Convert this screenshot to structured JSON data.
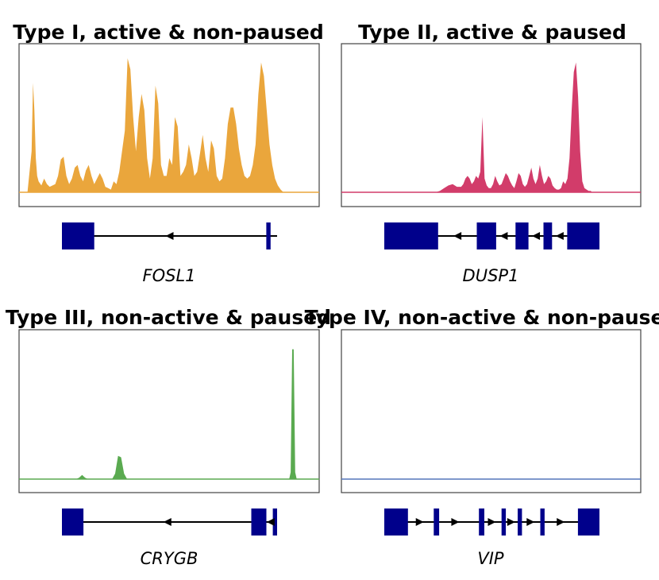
{
  "colors": {
    "frame": "#444444",
    "baseline": "#777777",
    "exon": "#00008b",
    "intron": "#000000"
  },
  "chart_data": [
    {
      "type": "area",
      "title": "Type I, active & non-paused",
      "gene": "FOSL1",
      "color": "#eaa63c",
      "x": [
        0,
        0.015,
        0.02,
        0.025,
        0.03,
        0.035,
        0.04,
        0.05,
        0.06,
        0.07,
        0.08,
        0.1,
        0.11,
        0.12,
        0.13,
        0.14,
        0.15,
        0.16,
        0.17,
        0.18,
        0.19,
        0.2,
        0.21,
        0.22,
        0.23,
        0.24,
        0.25,
        0.26,
        0.27,
        0.28,
        0.29,
        0.3,
        0.31,
        0.32,
        0.33,
        0.34,
        0.35,
        0.36,
        0.37,
        0.38,
        0.39,
        0.4,
        0.41,
        0.42,
        0.43,
        0.44,
        0.45,
        0.46,
        0.47,
        0.48,
        0.49,
        0.5,
        0.51,
        0.52,
        0.53,
        0.54,
        0.55,
        0.56,
        0.57,
        0.58,
        0.59,
        0.6,
        0.61,
        0.62,
        0.63,
        0.64,
        0.65,
        0.66,
        0.67,
        0.68,
        0.69,
        0.7,
        0.71,
        0.72,
        0.73,
        0.74,
        0.75,
        0.76,
        0.77,
        0.78,
        0.79,
        0.8,
        0.81,
        0.82,
        0.83,
        0.84,
        0.85,
        0.86,
        0.87,
        0.88,
        0.89,
        0.9,
        0.91,
        0.92,
        1
      ],
      "y": [
        0,
        0.3,
        0.8,
        0.6,
        0.25,
        0.12,
        0.08,
        0.05,
        0.1,
        0.06,
        0.04,
        0.06,
        0.12,
        0.24,
        0.26,
        0.12,
        0.06,
        0.1,
        0.18,
        0.2,
        0.12,
        0.08,
        0.16,
        0.2,
        0.12,
        0.06,
        0.1,
        0.14,
        0.1,
        0.04,
        0.03,
        0.02,
        0.08,
        0.06,
        0.15,
        0.3,
        0.45,
        0.98,
        0.9,
        0.55,
        0.3,
        0.55,
        0.72,
        0.6,
        0.25,
        0.1,
        0.25,
        0.78,
        0.65,
        0.2,
        0.12,
        0.12,
        0.25,
        0.2,
        0.55,
        0.48,
        0.12,
        0.15,
        0.2,
        0.35,
        0.25,
        0.12,
        0.15,
        0.28,
        0.42,
        0.25,
        0.15,
        0.38,
        0.32,
        0.12,
        0.08,
        0.1,
        0.25,
        0.5,
        0.62,
        0.62,
        0.5,
        0.32,
        0.2,
        0.12,
        0.1,
        0.12,
        0.2,
        0.35,
        0.72,
        0.95,
        0.85,
        0.6,
        0.35,
        0.2,
        0.1,
        0.05,
        0.02,
        0,
        0
      ],
      "signal_range": [
        0.028,
        0.955
      ],
      "exons": [
        [
          0,
          0.15
        ],
        [
          0.95,
          0.97
        ]
      ],
      "strand": "minus",
      "arrow_positions": [
        0.5
      ]
    },
    {
      "type": "area",
      "title": "Type II, active & paused",
      "gene": "DUSP1",
      "color": "#d23c6a",
      "x": [
        0,
        0.19,
        0.21,
        0.23,
        0.25,
        0.27,
        0.29,
        0.31,
        0.32,
        0.33,
        0.34,
        0.35,
        0.36,
        0.37,
        0.38,
        0.39,
        0.4,
        0.41,
        0.42,
        0.43,
        0.44,
        0.45,
        0.46,
        0.47,
        0.48,
        0.49,
        0.5,
        0.51,
        0.52,
        0.53,
        0.54,
        0.55,
        0.56,
        0.57,
        0.58,
        0.59,
        0.6,
        0.61,
        0.62,
        0.63,
        0.64,
        0.65,
        0.66,
        0.67,
        0.68,
        0.69,
        0.7,
        0.71,
        0.72,
        0.73,
        0.74,
        0.75,
        0.76,
        0.77,
        0.78,
        0.79,
        0.8,
        0.81,
        0.82,
        0.83,
        0.84,
        0.85,
        0.86,
        0.87,
        0.88,
        0.89,
        0.9,
        0.91,
        0.915,
        0.92,
        0.925,
        0.93,
        0.935,
        0.95,
        1
      ],
      "y": [
        0,
        0,
        0.01,
        0.03,
        0.05,
        0.06,
        0.04,
        0.04,
        0.06,
        0.1,
        0.12,
        0.1,
        0.06,
        0.08,
        0.12,
        0.1,
        0.15,
        0.55,
        0.1,
        0.05,
        0.03,
        0.03,
        0.06,
        0.12,
        0.08,
        0.05,
        0.06,
        0.1,
        0.14,
        0.12,
        0.08,
        0.05,
        0.03,
        0.08,
        0.14,
        0.12,
        0.06,
        0.04,
        0.06,
        0.12,
        0.18,
        0.1,
        0.06,
        0.1,
        0.2,
        0.12,
        0.06,
        0.08,
        0.12,
        0.1,
        0.05,
        0.03,
        0.02,
        0.02,
        0.03,
        0.08,
        0.06,
        0.1,
        0.25,
        0.6,
        0.88,
        0.95,
        0.7,
        0.3,
        0.08,
        0.03,
        0.02,
        0.01,
        0.01,
        0.01,
        0,
        0,
        0,
        0,
        0
      ],
      "signal_range": [
        0.18,
        0.89
      ],
      "exons": [
        [
          0,
          0.25
        ],
        [
          0.43,
          0.52
        ],
        [
          0.61,
          0.67
        ],
        [
          0.74,
          0.78
        ],
        [
          0.85,
          1.0
        ]
      ],
      "strand": "minus",
      "arrow_positions": [
        0.34,
        0.555,
        0.705,
        0.815
      ]
    },
    {
      "type": "area",
      "title": "Type III, non-active & paused",
      "gene": "CRYGB",
      "color": "#5aaa50",
      "x": [
        0,
        0.19,
        0.2,
        0.21,
        0.22,
        0.23,
        0.31,
        0.32,
        0.33,
        0.34,
        0.35,
        0.36,
        0.9,
        0.905,
        0.91,
        0.915,
        0.92,
        0.925,
        0.93,
        1
      ],
      "y": [
        0,
        0,
        0.01,
        0.03,
        0.01,
        0,
        0,
        0.04,
        0.17,
        0.16,
        0.04,
        0,
        0,
        0.05,
        0.95,
        0.95,
        0.05,
        0,
        0,
        0
      ],
      "signal_range": [
        0,
        1
      ],
      "exons": [
        [
          0,
          0.1
        ],
        [
          0.88,
          0.95
        ],
        [
          0.98,
          1.0
        ]
      ],
      "strand": "minus",
      "arrow_positions": [
        0.49,
        0.97
      ]
    },
    {
      "type": "area",
      "title": "Type IV, non-active & non-paused",
      "gene": "VIP",
      "color": "#5577bb",
      "x": [
        0,
        1
      ],
      "y": [
        0,
        0
      ],
      "signal_range": [
        0,
        1
      ],
      "exons": [
        [
          0,
          0.11
        ],
        [
          0.23,
          0.255
        ],
        [
          0.44,
          0.465
        ],
        [
          0.545,
          0.565
        ],
        [
          0.62,
          0.64
        ],
        [
          0.725,
          0.745
        ],
        [
          0.9,
          1.0
        ]
      ],
      "strand": "plus",
      "arrow_positions": [
        0.165,
        0.33,
        0.5,
        0.59,
        0.68,
        0.82
      ]
    }
  ]
}
